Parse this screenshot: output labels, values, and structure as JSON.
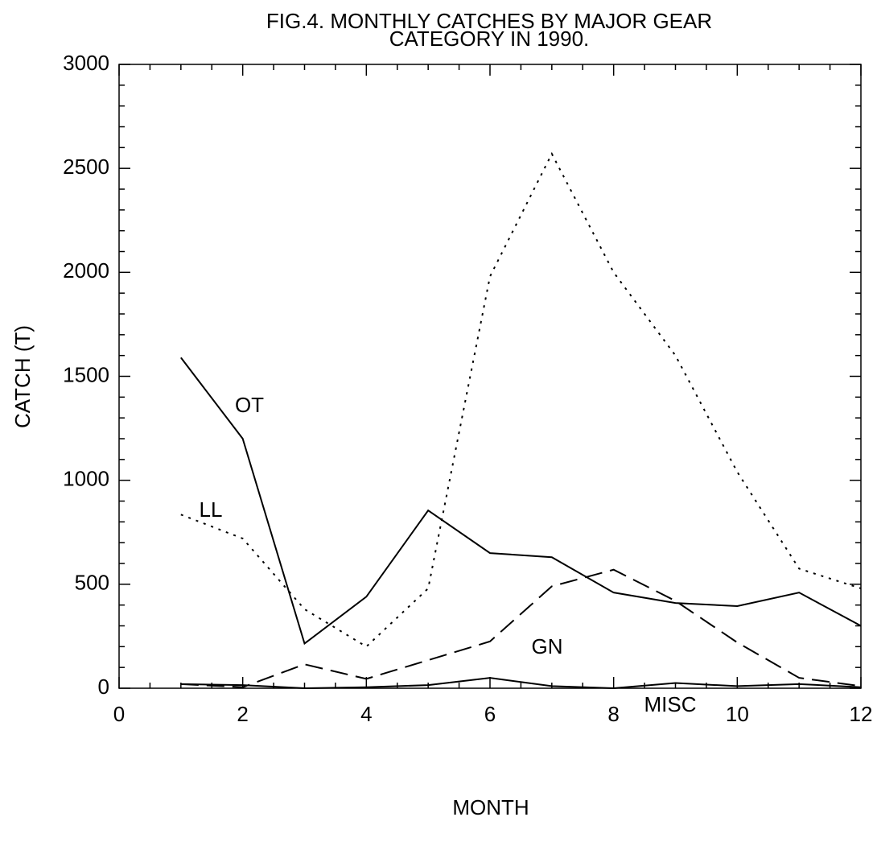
{
  "chart_data": {
    "type": "line",
    "title": [
      "FIG.4.  MONTHLY CATCHES BY MAJOR GEAR",
      "CATEGORY IN 1990."
    ],
    "x_label": "MONTH",
    "y_label": "CATCH (T)",
    "x": [
      1,
      2,
      3,
      4,
      5,
      6,
      7,
      8,
      9,
      10,
      11,
      12
    ],
    "series": [
      {
        "name": "OT",
        "color": "#000000",
        "values": [
          1590,
          1200,
          215,
          440,
          855,
          650,
          630,
          460,
          410,
          395,
          460,
          300
        ]
      },
      {
        "name": "LL",
        "color": "#000000",
        "values": [
          835,
          720,
          380,
          200,
          480,
          1980,
          2570,
          2000,
          1600,
          1040,
          575,
          480
        ]
      },
      {
        "name": "GN",
        "color": "#000000",
        "values": [
          20,
          5,
          115,
          45,
          135,
          225,
          490,
          570,
          420,
          220,
          50,
          10
        ]
      },
      {
        "name": "MISC",
        "color": "#000000",
        "values": [
          20,
          15,
          0,
          5,
          15,
          50,
          10,
          0,
          25,
          10,
          20,
          5
        ]
      }
    ],
    "xlim": [
      0,
      12
    ],
    "xticks": [
      0,
      2,
      4,
      6,
      8,
      10,
      12
    ],
    "ylim": [
      0,
      3000
    ],
    "yticks": [
      0,
      500,
      1000,
      1500,
      2000,
      2500,
      3000
    ],
    "grid": false
  }
}
